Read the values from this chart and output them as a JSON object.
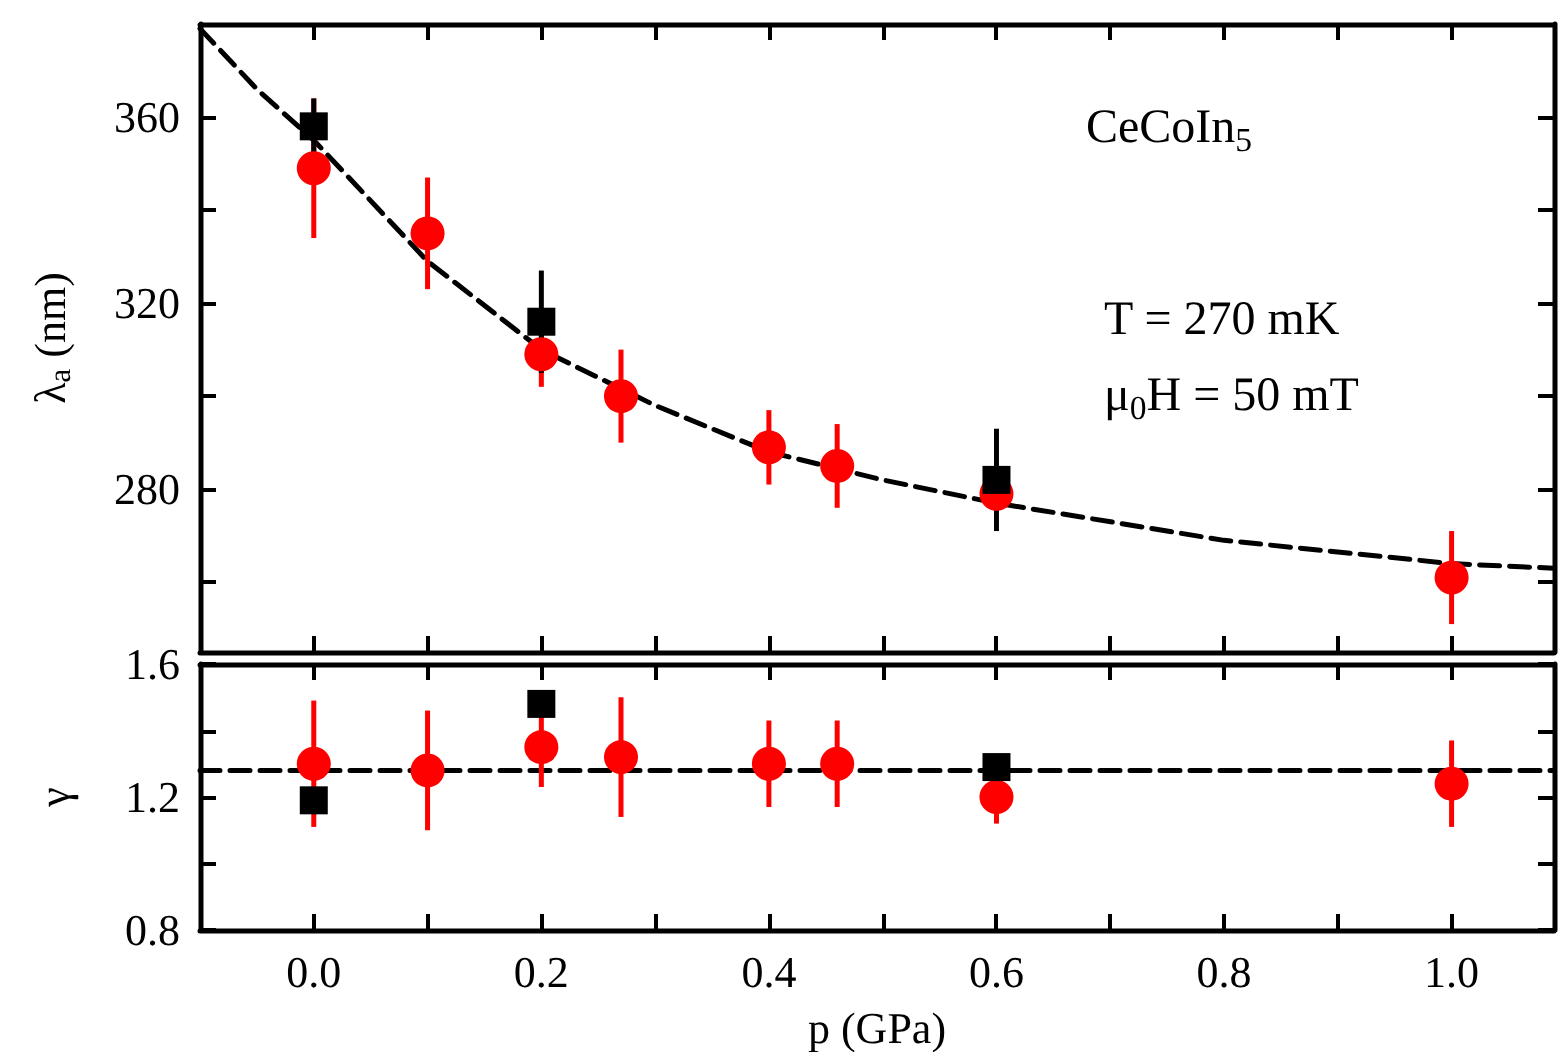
{
  "chart_data": [
    {
      "type": "scatter",
      "ylabel": "λ$_{a}$ (nm)",
      "annotations": [
        "CeCoIn$_{5}$",
        "T = 270 mK",
        "μ$_{0}$H = 50 mT"
      ],
      "xlim": [
        -0.1,
        1.09
      ],
      "xticks": [
        {
          "value": 0,
          "label": null
        },
        {
          "value": 0.1,
          "label": null
        },
        {
          "value": 0.2,
          "label": null
        },
        {
          "value": 0.3,
          "label": null
        },
        {
          "value": 0.4,
          "label": null
        },
        {
          "value": 0.5,
          "label": null
        },
        {
          "value": 0.6,
          "label": null
        },
        {
          "value": 0.7,
          "label": null
        },
        {
          "value": 0.8,
          "label": null
        },
        {
          "value": 0.9,
          "label": null
        },
        {
          "value": 1,
          "label": null
        }
      ],
      "ylim": [
        245,
        380
      ],
      "yticks": [
        {
          "value": 260,
          "label": null
        },
        280,
        {
          "value": 300,
          "label": null
        },
        320,
        {
          "value": 340,
          "label": null
        },
        360
      ],
      "tick_labels": "y",
      "series": [
        {
          "type": "line",
          "color": "#000000",
          "line_style": "dashed",
          "marker": "none",
          "x": [
            -0.1,
            -0.05,
            0,
            0.1,
            0.2,
            0.3,
            0.4,
            0.5,
            0.6,
            0.8,
            1,
            1.09
          ],
          "values": [
            379,
            366,
            355,
            329,
            310,
            298,
            288,
            282,
            277,
            269,
            264,
            263
          ]
        },
        {
          "color": "#ff0000",
          "marker": "circle",
          "x": [
            0,
            0.1,
            0.2,
            0.27,
            0.4,
            0.46,
            0.6,
            1
          ],
          "values": [
            349,
            335,
            309,
            300,
            289,
            285,
            279,
            261
          ],
          "errors": [
            15,
            12,
            7,
            10,
            8,
            9,
            null,
            10
          ]
        },
        {
          "color": "#000000",
          "marker": "square",
          "x": [
            0,
            0.2,
            0.6
          ],
          "values": [
            358,
            316,
            282
          ],
          "errors": [
            6,
            11,
            11
          ]
        }
      ]
    },
    {
      "type": "scatter",
      "ylabel": "γ",
      "xlabel": "p (GPa)",
      "xlim": [
        -0.1,
        1.09
      ],
      "xticks": [
        {
          "value": 0,
          "label": "0.0"
        },
        {
          "value": 0.1,
          "label": null
        },
        {
          "value": 0.2,
          "label": "0.2"
        },
        {
          "value": 0.3,
          "label": null
        },
        {
          "value": 0.4,
          "label": "0.4"
        },
        {
          "value": 0.5,
          "label": null
        },
        {
          "value": 0.6,
          "label": "0.6"
        },
        {
          "value": 0.7,
          "label": null
        },
        {
          "value": 0.8,
          "label": "0.8"
        },
        {
          "value": 0.9,
          "label": null
        },
        {
          "value": 1,
          "label": "1.0"
        }
      ],
      "ylim": [
        0.8,
        1.6
      ],
      "yticks": [
        0.8,
        {
          "value": 1,
          "label": null
        },
        1.2,
        {
          "value": 1.4,
          "label": null
        },
        1.6
      ],
      "series": [
        {
          "type": "line",
          "color": "#000000",
          "line_style": "dashed",
          "marker": "none",
          "x": [
            -0.1,
            1.09
          ],
          "values": [
            1.28,
            1.28
          ]
        },
        {
          "color": "#ff0000",
          "marker": "circle",
          "x": [
            0,
            0.1,
            0.2,
            0.27,
            0.4,
            0.46,
            0.6,
            1
          ],
          "values": [
            1.3,
            1.28,
            1.35,
            1.32,
            1.3,
            1.3,
            1.2,
            1.24
          ],
          "errors": [
            0.19,
            0.18,
            0.12,
            0.18,
            0.13,
            0.13,
            0.08,
            0.13
          ]
        },
        {
          "color": "#000000",
          "marker": "square",
          "x": [
            0,
            0.2,
            0.6
          ],
          "values": [
            1.19,
            1.48,
            1.29
          ]
        }
      ]
    }
  ]
}
